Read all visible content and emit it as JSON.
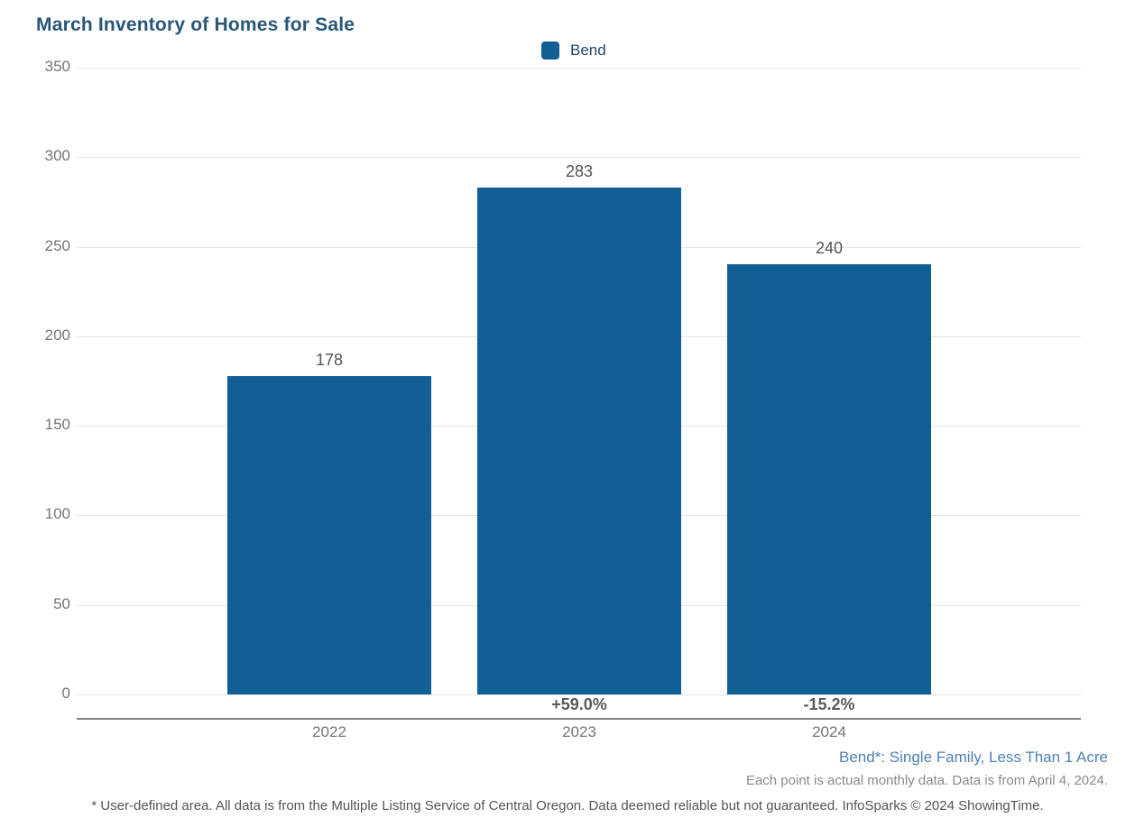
{
  "title": "March Inventory of Homes for Sale",
  "legend": {
    "items": [
      {
        "label": "Bend",
        "color": "#115F95"
      }
    ]
  },
  "chart_data": {
    "type": "bar",
    "title": "March Inventory of Homes for Sale",
    "categories": [
      "2022",
      "2023",
      "2024"
    ],
    "series": [
      {
        "name": "Bend",
        "values": [
          178,
          283,
          240
        ],
        "color": "#115F95"
      }
    ],
    "value_labels": [
      "178",
      "283",
      "240"
    ],
    "change_labels": [
      "",
      "+59.0%",
      "-15.2%"
    ],
    "ylim": [
      0,
      350
    ],
    "yticks": [
      0,
      50,
      100,
      150,
      200,
      250,
      300,
      350
    ],
    "grid": true,
    "legend_position": "top-center"
  },
  "footnotes": {
    "series_definition": "Bend*: Single Family, Less Than 1 Acre",
    "data_note": "Each point is actual monthly data. Data is from April 4, 2024.",
    "disclaimer": "* User-defined area. All data is from the Multiple Listing Service of Central Oregon. Data deemed reliable but not guaranteed. InfoSparks © 2024 ShowingTime."
  },
  "colors": {
    "bar": "#115F95",
    "title_text": "#275679",
    "legend_text": "#274664",
    "series_footnote_text": "#4E81B4",
    "axis_line": "#818181",
    "gridline": "#E4E4E4",
    "tick_text": "#757575",
    "value_text": "#555555"
  }
}
